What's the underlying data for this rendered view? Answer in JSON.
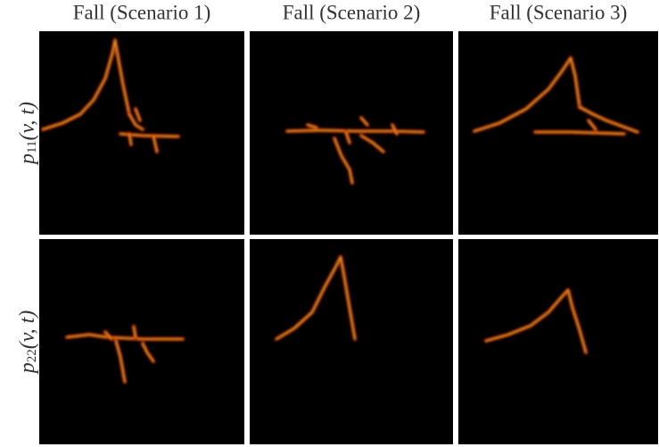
{
  "columns": [
    "Fall (Scenario 1)",
    "Fall (Scenario 2)",
    "Fall (Scenario 3)"
  ],
  "rows": [
    {
      "symbol": "p",
      "subscript": "11",
      "args": "(v, t)"
    },
    {
      "symbol": "p",
      "subscript": "22",
      "args": "(v, t)"
    }
  ]
}
